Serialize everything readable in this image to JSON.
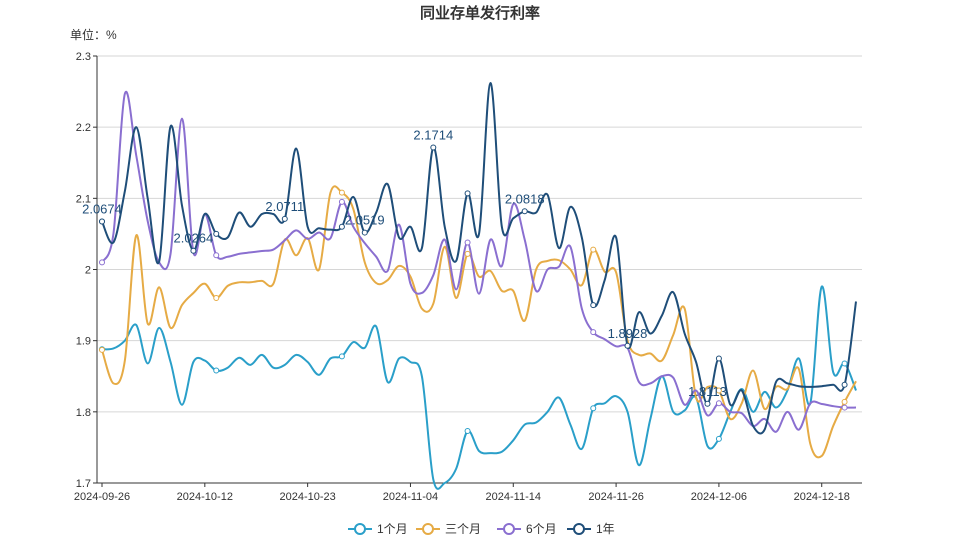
{
  "chart_data": {
    "type": "line",
    "title": "同业存单发行利率",
    "unit_label": "单位：%",
    "xlabel": "",
    "ylabel": "",
    "ylim": [
      1.7,
      2.3
    ],
    "y_ticks": [
      "1.7",
      "1.8",
      "1.9",
      "2",
      "2.1",
      "2.2",
      "2.3"
    ],
    "x_ticks": [
      "2024-09-26",
      "2024-10-12",
      "2024-10-23",
      "2024-11-04",
      "2024-11-14",
      "2024-11-26",
      "2024-12-06",
      "2024-12-18"
    ],
    "grid": true,
    "legend_position": "bottom",
    "n_points": 67,
    "series": [
      {
        "name": "1个月",
        "color": "#2a9fc9",
        "values": [
          1.888,
          1.889,
          1.9,
          1.922,
          1.868,
          1.918,
          1.87,
          1.81,
          1.87,
          1.872,
          1.858,
          1.862,
          1.876,
          1.866,
          1.88,
          1.862,
          1.866,
          1.88,
          1.87,
          1.852,
          1.875,
          1.878,
          1.898,
          1.89,
          1.92,
          1.842,
          1.875,
          1.87,
          1.85,
          1.705,
          1.7,
          1.72,
          1.773,
          1.745,
          1.742,
          1.744,
          1.76,
          1.782,
          1.785,
          1.8,
          1.82,
          1.782,
          1.748,
          1.805,
          1.812,
          1.822,
          1.8,
          1.725,
          1.79,
          1.85,
          1.8,
          1.802,
          1.82,
          1.752,
          1.762,
          1.8,
          1.832,
          1.8,
          1.828,
          1.806,
          1.83,
          1.875,
          1.812,
          1.976,
          1.856,
          1.868,
          1.83
        ],
        "point_labels": {}
      },
      {
        "name": "三个月",
        "color": "#e6ab45",
        "values": [
          1.887,
          1.84,
          1.872,
          2.048,
          1.924,
          1.975,
          1.918,
          1.95,
          1.967,
          1.98,
          1.96,
          1.977,
          1.982,
          1.982,
          1.984,
          1.98,
          2.042,
          2.02,
          2.044,
          2.0,
          2.108,
          2.108,
          2.085,
          2.01,
          1.981,
          1.985,
          2.005,
          1.99,
          1.945,
          1.952,
          2.032,
          1.96,
          2.022,
          1.99,
          1.998,
          1.97,
          1.97,
          1.928,
          2.0,
          2.012,
          2.013,
          2.0,
          1.978,
          2.028,
          1.997,
          1.996,
          1.9,
          1.88,
          1.882,
          1.872,
          1.908,
          1.945,
          1.82,
          1.835,
          1.83,
          1.79,
          1.812,
          1.858,
          1.804,
          1.835,
          1.832,
          1.86,
          1.755,
          1.738,
          1.78,
          1.814,
          1.843
        ],
        "point_labels": {}
      },
      {
        "name": "6个月",
        "color": "#8a6fd0",
        "values": [
          2.01,
          2.05,
          2.247,
          2.16,
          2.068,
          2.01,
          2.022,
          2.212,
          2.024,
          2.078,
          2.02,
          2.018,
          2.022,
          2.024,
          2.026,
          2.028,
          2.041,
          2.055,
          2.043,
          2.052,
          2.044,
          2.095,
          2.06,
          2.037,
          2.018,
          1.998,
          2.063,
          1.98,
          1.967,
          1.992,
          2.042,
          1.972,
          2.038,
          1.966,
          2.042,
          2.005,
          2.092,
          2.042,
          1.97,
          2.0,
          2.004,
          2.032,
          1.945,
          1.912,
          1.902,
          1.892,
          1.89,
          1.842,
          1.84,
          1.85,
          1.848,
          1.81,
          1.83,
          1.795,
          1.812,
          1.8,
          1.798,
          1.78,
          1.79,
          1.772,
          1.8,
          1.775,
          1.812,
          1.811,
          1.808,
          1.806,
          1.806
        ],
        "point_labels": {}
      },
      {
        "name": "1年",
        "color": "#1f4e79",
        "values": [
          2.0674,
          2.038,
          2.11,
          2.2,
          2.1,
          2.011,
          2.201,
          2.09,
          2.0264,
          2.078,
          2.05,
          2.045,
          2.08,
          2.06,
          2.078,
          2.078,
          2.0711,
          2.17,
          2.06,
          2.058,
          2.056,
          2.06,
          2.102,
          2.0519,
          2.08,
          2.12,
          2.045,
          2.06,
          2.03,
          2.1714,
          2.06,
          2.012,
          2.107,
          2.05,
          2.262,
          2.06,
          2.072,
          2.0818,
          2.08,
          2.105,
          2.03,
          2.088,
          2.045,
          1.95,
          1.985,
          2.045,
          1.8928,
          1.94,
          1.91,
          1.935,
          1.968,
          1.91,
          1.87,
          1.8113,
          1.875,
          1.81,
          1.83,
          1.78,
          1.775,
          1.842,
          1.84,
          1.836,
          1.835,
          1.836,
          1.838,
          1.838,
          1.955
        ],
        "point_labels": {
          "0": "2.0674",
          "8": "2.0264",
          "16": "2.0711",
          "23": "2.0519",
          "29": "2.1714",
          "37": "2.0818",
          "46": "1.8928",
          "53": "1.8113"
        }
      }
    ]
  }
}
